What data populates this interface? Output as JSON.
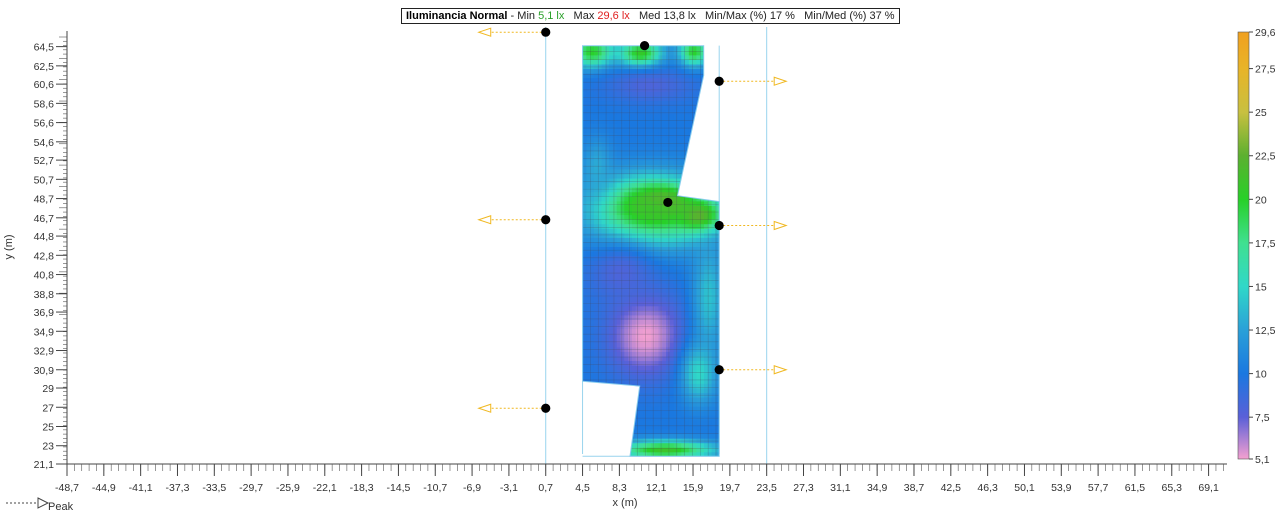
{
  "header": {
    "title": "Iluminancia  Normal",
    "sep": "-",
    "min_label": "Min",
    "min_value": "5,1 lx",
    "max_label": "Max",
    "max_value": "29,6 lx",
    "med_label": "Med",
    "med_value": "13,8 lx",
    "minmax_label": "Min/Max (%)",
    "minmax_value": "17 %",
    "minmed_label": "Min/Med (%)",
    "minmed_value": "37 %"
  },
  "legend": {
    "peak_label": "Peak"
  },
  "colorbar": {
    "ticks": [
      "29,6",
      "27,5",
      "25",
      "22,5",
      "20",
      "17,5",
      "15",
      "12,5",
      "10",
      "7,5",
      "5,1"
    ],
    "values": [
      29.6,
      27.5,
      25,
      22.5,
      20,
      17.5,
      15,
      12.5,
      10,
      7.5,
      5.1
    ],
    "colors": {
      "29.6": "#f0a020",
      "27.5": "#e8b428",
      "25": "#c8c040",
      "22.5": "#5cb030",
      "20": "#28d028",
      "17.5": "#40e090",
      "15": "#30d8c8",
      "12.5": "#2aa0d8",
      "10": "#1a78e0",
      "7.5": "#5a60d8",
      "5.1": "#f4a0d0"
    }
  },
  "chart_data": {
    "type": "heatmap",
    "quantity": "Iluminancia Normal (lx)",
    "xlabel": "x (m)",
    "ylabel": "y (m)",
    "xlim": [
      -48.7,
      71
    ],
    "ylim": [
      21.1,
      65.5
    ],
    "x_ticks": [
      "-48,7",
      "-44,9",
      "-41,1",
      "-37,3",
      "-33,5",
      "-29,7",
      "-25,9",
      "-22,1",
      "-18,3",
      "-14,5",
      "-10,7",
      "-6,9",
      "-3,1",
      "0,7",
      "4,5",
      "8,3",
      "12,1",
      "15,9",
      "19,7",
      "23,5",
      "27,3",
      "31,1",
      "34,9",
      "38,7",
      "42,5",
      "46,3",
      "50,1",
      "53,9",
      "57,7",
      "61,5",
      "65,3",
      "69,1"
    ],
    "x_tick_values": [
      -48.7,
      -44.9,
      -41.1,
      -37.3,
      -33.5,
      -29.7,
      -25.9,
      -22.1,
      -18.3,
      -14.5,
      -10.7,
      -6.9,
      -3.1,
      0.7,
      4.5,
      8.3,
      12.1,
      15.9,
      19.7,
      23.5,
      27.3,
      31.1,
      34.9,
      38.7,
      42.5,
      46.3,
      50.1,
      53.9,
      57.7,
      61.5,
      65.3,
      69.1
    ],
    "y_ticks": [
      "64,5",
      "62,5",
      "60,6",
      "58,6",
      "56,6",
      "54,6",
      "52,7",
      "50,7",
      "48,7",
      "46,7",
      "44,8",
      "42,8",
      "40,8",
      "38,8",
      "36,9",
      "34,9",
      "32,9",
      "30,9",
      "29",
      "27",
      "25",
      "23",
      "21,1"
    ],
    "y_tick_values": [
      64.5,
      62.5,
      60.6,
      58.6,
      56.6,
      54.6,
      52.7,
      50.7,
      48.7,
      46.7,
      44.8,
      42.8,
      40.8,
      38.8,
      36.9,
      34.9,
      32.9,
      30.9,
      29,
      27,
      25,
      23,
      21.1
    ],
    "summary": {
      "min": 5.1,
      "max": 29.6,
      "mean": 13.8,
      "min_max_pct": 17,
      "min_med_pct": 37
    },
    "luminaires": [
      {
        "x": 0.7,
        "y": 66.0,
        "arrow": "left"
      },
      {
        "x": 10.9,
        "y": 64.6,
        "arrow": "none"
      },
      {
        "x": 18.6,
        "y": 60.9,
        "arrow": "right"
      },
      {
        "x": 13.3,
        "y": 48.3,
        "arrow": "none"
      },
      {
        "x": 0.7,
        "y": 46.5,
        "arrow": "left"
      },
      {
        "x": 18.6,
        "y": 45.9,
        "arrow": "right"
      },
      {
        "x": 18.6,
        "y": 30.9,
        "arrow": "right"
      },
      {
        "x": 0.7,
        "y": 26.9,
        "arrow": "left"
      }
    ],
    "area_outline": [
      [
        4.5,
        64.6
      ],
      [
        17.0,
        64.6
      ],
      [
        17.0,
        61.5
      ],
      [
        14.3,
        49.0
      ],
      [
        18.6,
        48.4
      ],
      [
        18.6,
        21.9
      ],
      [
        9.4,
        21.9
      ],
      [
        10.4,
        29.2
      ],
      [
        4.5,
        29.7
      ]
    ],
    "field": {
      "background": 10,
      "blobs": [
        {
          "x": 5.5,
          "y": 64.0,
          "value": 20,
          "rx": 2.2,
          "ry": 1.6
        },
        {
          "x": 10.5,
          "y": 63.8,
          "value": 21,
          "rx": 2.2,
          "ry": 1.4
        },
        {
          "x": 16.0,
          "y": 64.0,
          "value": 20,
          "rx": 1.5,
          "ry": 1.5
        },
        {
          "x": 11.5,
          "y": 60.5,
          "value": 8,
          "rx": 4.5,
          "ry": 1.8
        },
        {
          "x": 12.5,
          "y": 48.3,
          "value": 29,
          "rx": 3.0,
          "ry": 1.6
        },
        {
          "x": 16.5,
          "y": 47.0,
          "value": 25,
          "rx": 2.2,
          "ry": 1.6
        },
        {
          "x": 11.5,
          "y": 47.5,
          "value": 21,
          "rx": 6.0,
          "ry": 3.6
        },
        {
          "x": 11.0,
          "y": 34.5,
          "value": 5.1,
          "rx": 3.8,
          "ry": 4.2
        },
        {
          "x": 8.5,
          "y": 41.0,
          "value": 8,
          "rx": 3.5,
          "ry": 3.0
        },
        {
          "x": 17.5,
          "y": 38.5,
          "value": 14,
          "rx": 1.6,
          "ry": 5.5
        },
        {
          "x": 16.5,
          "y": 30.5,
          "value": 15,
          "rx": 1.8,
          "ry": 3.0
        },
        {
          "x": 13.0,
          "y": 22.6,
          "value": 21,
          "rx": 5.0,
          "ry": 1.0
        },
        {
          "x": 6.0,
          "y": 52.0,
          "value": 13,
          "rx": 1.5,
          "ry": 3.0
        }
      ]
    }
  }
}
